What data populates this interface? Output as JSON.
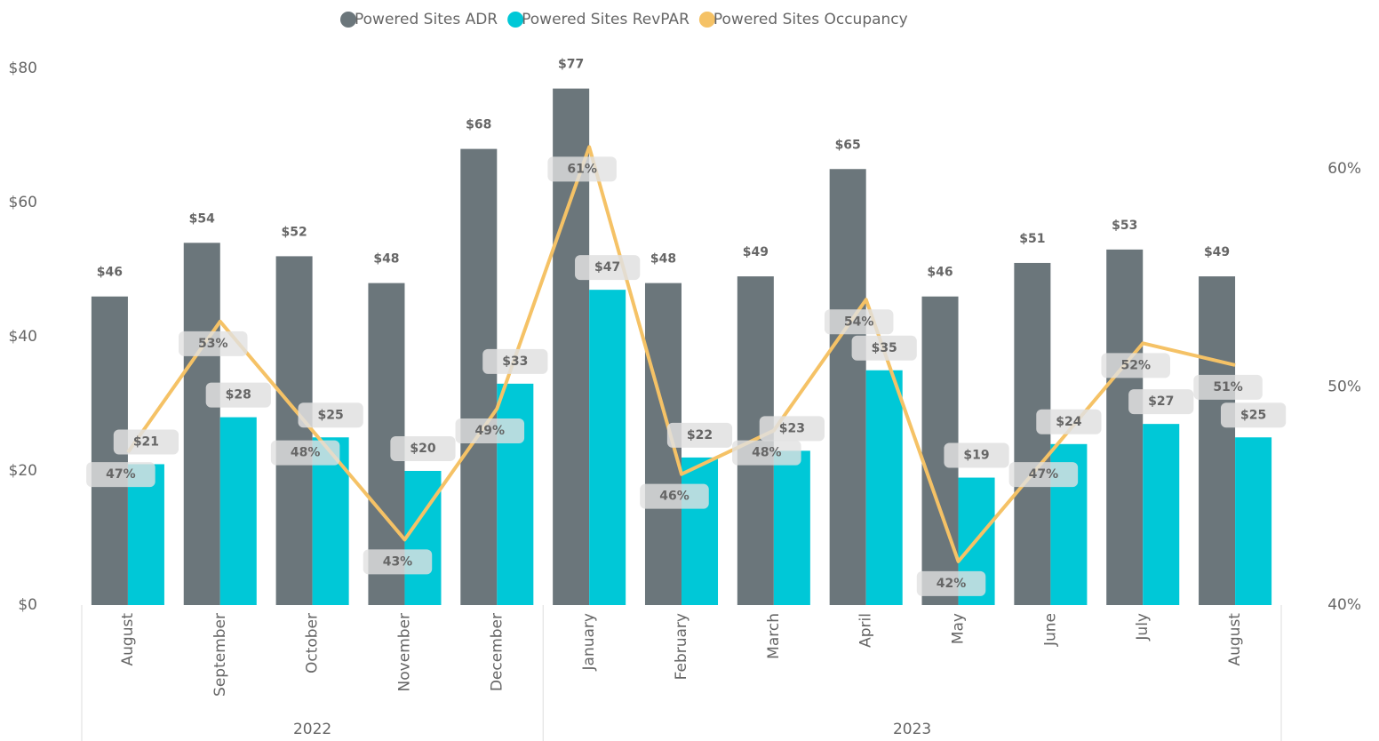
{
  "chart_data": {
    "type": "combo",
    "categories": [
      "August",
      "September",
      "October",
      "November",
      "December",
      "January",
      "February",
      "March",
      "April",
      "May",
      "June",
      "July",
      "August"
    ],
    "category_groups": [
      "2022",
      "2022",
      "2022",
      "2022",
      "2022",
      "2023",
      "2023",
      "2023",
      "2023",
      "2023",
      "2023",
      "2023",
      "2023"
    ],
    "series": [
      {
        "name": "Powered Sites ADR",
        "type": "bar",
        "color": "#6b767b",
        "values": [
          46,
          54,
          52,
          48,
          68,
          77,
          48,
          49,
          65,
          46,
          51,
          53,
          49
        ],
        "value_labels": [
          "$46",
          "$54",
          "$52",
          "$48",
          "$68",
          "$77",
          "$48",
          "$49",
          "$65",
          "$46",
          "$51",
          "$53",
          "$49"
        ]
      },
      {
        "name": "Powered Sites RevPAR",
        "type": "bar",
        "color": "#00c8d7",
        "values": [
          21,
          28,
          25,
          20,
          33,
          47,
          22,
          23,
          35,
          19,
          24,
          27,
          25
        ],
        "value_labels": [
          "$21",
          "$28",
          "$25",
          "$20",
          "$33",
          "$47",
          "$22",
          "$23",
          "$35",
          "$19",
          "$24",
          "$27",
          "$25"
        ]
      },
      {
        "name": "Powered Sites Occupancy",
        "type": "line",
        "axis": "y2",
        "color": "#f5c266",
        "values": [
          47,
          53,
          48,
          43,
          49,
          61,
          46,
          48,
          54,
          42,
          47,
          52,
          51
        ],
        "value_labels": [
          "47%",
          "53%",
          "48%",
          "43%",
          "49%",
          "61%",
          "46%",
          "48%",
          "54%",
          "42%",
          "47%",
          "52%",
          "51%"
        ]
      }
    ],
    "ylim": [
      0,
      80
    ],
    "yticks": [
      {
        "value": 0,
        "label": "$0"
      },
      {
        "value": 20,
        "label": "$20"
      },
      {
        "value": 40,
        "label": "$40"
      },
      {
        "value": 60,
        "label": "$60"
      },
      {
        "value": 80,
        "label": "$80"
      }
    ],
    "y2lim": [
      40,
      64.6
    ],
    "y2ticks": [
      {
        "value": 40,
        "label": "40%"
      },
      {
        "value": 50,
        "label": "50%"
      },
      {
        "value": 60,
        "label": "60%"
      }
    ],
    "legend": "top",
    "grid": false
  }
}
